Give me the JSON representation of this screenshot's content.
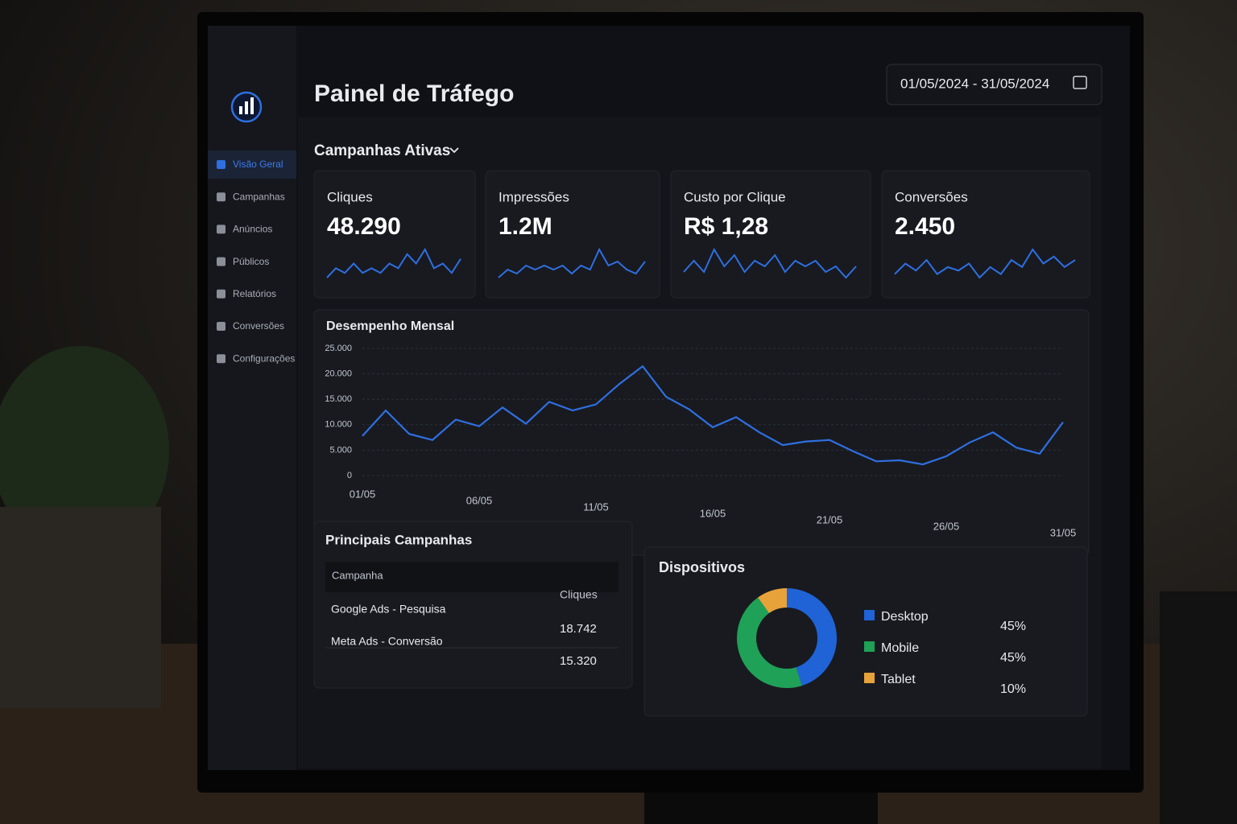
{
  "sidebar": {
    "items": [
      "Visão Geral",
      "Campanhas",
      "Anúncios",
      "Públicos",
      "Relatórios",
      "Conversões",
      "Configurações"
    ]
  },
  "header": {
    "title": "Painel de Tráfego",
    "date_range": "01/05/2024 - 31/05/2024"
  },
  "section": {
    "title": "Campanhas Ativas"
  },
  "kpis": [
    {
      "label": "Cliques",
      "value": "48.290",
      "color": "#2f6fe0",
      "sparkline": [
        3,
        5,
        4,
        6,
        4,
        5,
        4,
        6,
        5,
        8,
        6,
        9,
        5,
        6,
        4,
        7
      ]
    },
    {
      "label": "Impressões",
      "value": "1.2M",
      "color": "#2f6fe0",
      "sparkline": [
        3,
        5,
        4,
        6,
        5,
        6,
        5,
        6,
        4,
        6,
        5,
        10,
        6,
        7,
        5,
        4,
        7
      ]
    },
    {
      "label": "Custo por Clique",
      "value": "R$ 1,28",
      "color": "#2f6fe0",
      "sparkline": [
        4,
        6,
        4,
        8,
        5,
        7,
        4,
        6,
        5,
        7,
        4,
        6,
        5,
        6,
        4,
        5,
        3,
        5
      ]
    },
    {
      "label": "Conversões",
      "value": "2.450",
      "color": "#2f6fe0",
      "sparkline": [
        4,
        7,
        5,
        8,
        4,
        6,
        5,
        7,
        3,
        6,
        4,
        8,
        6,
        11,
        7,
        9,
        6,
        8
      ]
    }
  ],
  "chart_data": [
    {
      "type": "line",
      "title": "Desempenho Mensal",
      "color": "#2f6fe0",
      "grid": true,
      "categories": [
        "01/05",
        null,
        null,
        null,
        null,
        "06/05",
        null,
        null,
        null,
        null,
        "11/05",
        null,
        null,
        null,
        null,
        "16/05",
        null,
        null,
        null,
        null,
        "21/05",
        null,
        null,
        null,
        null,
        "26/05",
        null,
        null,
        null,
        null,
        "31/05"
      ],
      "values": [
        7800,
        12800,
        8200,
        7000,
        11000,
        9700,
        13400,
        10200,
        14500,
        12800,
        14000,
        18000,
        21500,
        15500,
        13000,
        9500,
        11500,
        8500,
        6000,
        6700,
        7000,
        4800,
        2800,
        3000,
        2200,
        3800,
        6500,
        8500,
        5500,
        4300,
        10500
      ],
      "ylim": [
        0,
        25000
      ],
      "yticks": [
        0,
        {
          "value": 5000,
          "label": "5.000"
        },
        {
          "value": 10000,
          "label": "10.000"
        },
        {
          "value": 15000,
          "label": "15.000"
        },
        {
          "value": 20000,
          "label": "20.000"
        },
        {
          "value": 25000,
          "label": "25.000"
        }
      ]
    },
    {
      "type": "pie",
      "title": "Dispositivos",
      "donut": true,
      "categories": [
        "Desktop",
        "Mobile",
        "Tablet"
      ],
      "values": [
        45,
        45,
        10
      ],
      "value_labels": [
        "45%",
        "45%",
        "10%"
      ],
      "colors": [
        "#1f63d6",
        "#1fa157",
        "#e8a23a"
      ]
    }
  ],
  "table": {
    "title": "Principais Campanhas",
    "columns": [
      "Campanha",
      "Cliques"
    ],
    "rows": [
      [
        "Google Ads - Pesquisa",
        "18.742"
      ],
      [
        "Meta Ads - Conversão",
        "15.320"
      ]
    ]
  }
}
